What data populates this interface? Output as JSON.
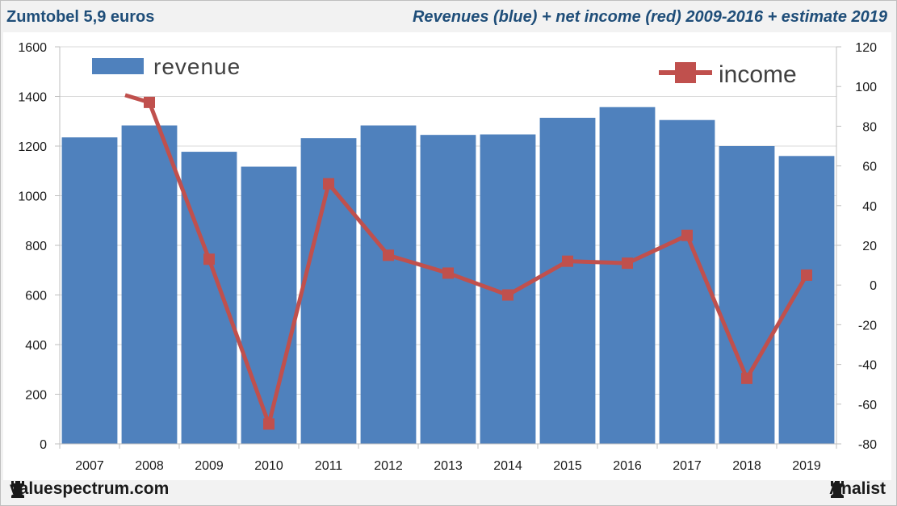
{
  "header": {
    "left_title": "Zumtobel 5,9 euros",
    "right_title": "Revenues (blue) + net income (red) 2009-2016 + estimate 2019"
  },
  "footer": {
    "left_brand": "valuespectrum.com",
    "right_brand": "Analist",
    "icon": "rook-icon"
  },
  "colors": {
    "revenue": "#4f81bd",
    "income": "#c0504d",
    "title": "#1f4e79"
  },
  "chart_data": {
    "type": "bar",
    "categories": [
      "2007",
      "2008",
      "2009",
      "2010",
      "2011",
      "2012",
      "2013",
      "2014",
      "2015",
      "2016",
      "2017",
      "2018",
      "2019"
    ],
    "series": [
      {
        "name": "revenue",
        "type": "bar",
        "axis": "left",
        "values": [
          1235,
          1283,
          1177,
          1117,
          1232,
          1283,
          1245,
          1247,
          1314,
          1357,
          1305,
          1200,
          1160
        ]
      },
      {
        "name": "income",
        "type": "line",
        "axis": "right",
        "values": [
          null,
          92,
          13,
          -70,
          51,
          15,
          6,
          -5,
          12,
          11,
          25,
          -47,
          5
        ]
      }
    ],
    "left_axis": {
      "ylim": [
        0,
        1600
      ],
      "ticks": [
        0,
        200,
        400,
        600,
        800,
        1000,
        1200,
        1400,
        1600
      ]
    },
    "right_axis": {
      "ylim": [
        -80,
        120
      ],
      "ticks": [
        -80,
        -60,
        -40,
        -20,
        0,
        20,
        40,
        60,
        80,
        100,
        120
      ]
    },
    "legend": [
      "revenue",
      "income"
    ],
    "grid": true
  }
}
